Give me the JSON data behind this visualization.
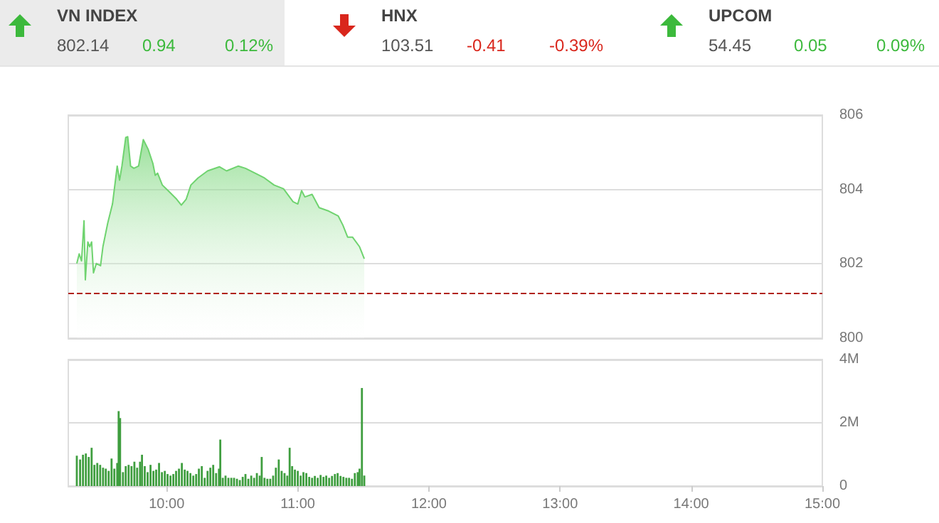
{
  "chart_data": [
    {
      "type": "other",
      "annotations": [
        "VN INDEX",
        "802.14",
        "0.94",
        "0.12%",
        "HNX",
        "103.51",
        "-0.41",
        "-0.39%",
        "UPCOM",
        "54.45",
        "0.05",
        "0.09%"
      ],
      "colors": [
        "#3cb93c",
        "#d9261c",
        "#3cb93c"
      ]
    },
    {
      "type": "area",
      "color": "#6fd36f",
      "tick_labels": "y",
      "grid": "y",
      "x": [
        9.315,
        9.333,
        9.351,
        9.37,
        9.38,
        9.399,
        9.413,
        9.428,
        9.442,
        9.464,
        9.496,
        9.514,
        9.551,
        9.587,
        9.623,
        9.641,
        9.659,
        9.688,
        9.703,
        9.725,
        9.75,
        9.786,
        9.822,
        9.859,
        9.895,
        9.913,
        9.931,
        9.967,
        10.022,
        10.076,
        10.112,
        10.149,
        10.185,
        10.239,
        10.312,
        10.402,
        10.457,
        10.547,
        10.601,
        10.674,
        10.746,
        10.819,
        10.891,
        10.964,
        11.0,
        11.029,
        11.054,
        11.109,
        11.163,
        11.236,
        11.308,
        11.344,
        11.38,
        11.417,
        11.471,
        11.507
      ],
      "values": [
        802.01,
        802.27,
        802.08,
        803.16,
        801.57,
        802.59,
        802.46,
        802.59,
        801.76,
        802.01,
        801.95,
        802.46,
        803.1,
        803.61,
        804.63,
        804.25,
        804.63,
        805.4,
        805.42,
        804.63,
        804.57,
        804.63,
        805.34,
        805.08,
        804.7,
        804.38,
        804.44,
        804.12,
        803.93,
        803.74,
        803.58,
        803.74,
        804.12,
        804.31,
        804.5,
        804.61,
        804.5,
        804.63,
        804.57,
        804.44,
        804.31,
        804.12,
        804.02,
        803.67,
        803.61,
        803.97,
        803.8,
        803.87,
        803.51,
        803.42,
        803.29,
        803.04,
        802.72,
        802.72,
        802.46,
        802.14
      ],
      "xlim": [
        9.25,
        15
      ],
      "ylim": [
        800,
        806
      ],
      "yticks": [
        800,
        802,
        804,
        806
      ],
      "ref_lines": [
        {
          "axis": "y",
          "value": 801.2,
          "color": "#b0211a",
          "line_style": "dashed"
        }
      ]
    },
    {
      "type": "bar",
      "color": "#3f9e3f",
      "grid": "y",
      "x": [
        9.315,
        9.34,
        9.362,
        9.384,
        9.406,
        9.428,
        9.449,
        9.471,
        9.493,
        9.515,
        9.536,
        9.558,
        9.58,
        9.601,
        9.623,
        9.634,
        9.645,
        9.667,
        9.688,
        9.71,
        9.732,
        9.754,
        9.775,
        9.797,
        9.812,
        9.833,
        9.855,
        9.877,
        9.899,
        9.92,
        9.942,
        9.964,
        9.986,
        10.007,
        10.029,
        10.051,
        10.072,
        10.094,
        10.116,
        10.138,
        10.159,
        10.181,
        10.203,
        10.225,
        10.246,
        10.268,
        10.29,
        10.312,
        10.333,
        10.355,
        10.377,
        10.399,
        10.409,
        10.428,
        10.449,
        10.471,
        10.493,
        10.514,
        10.536,
        10.558,
        10.58,
        10.601,
        10.623,
        10.645,
        10.667,
        10.688,
        10.71,
        10.725,
        10.746,
        10.768,
        10.79,
        10.812,
        10.833,
        10.855,
        10.877,
        10.899,
        10.92,
        10.938,
        10.957,
        10.978,
        11.0,
        11.022,
        11.043,
        11.065,
        11.087,
        11.109,
        11.13,
        11.152,
        11.174,
        11.196,
        11.217,
        11.239,
        11.261,
        11.283,
        11.304,
        11.326,
        11.348,
        11.37,
        11.391,
        11.413,
        11.435,
        11.457,
        11.471,
        11.489,
        11.507
      ],
      "values": [
        0.96,
        0.84,
        0.99,
        1.03,
        0.92,
        1.21,
        0.67,
        0.73,
        0.67,
        0.58,
        0.55,
        0.48,
        0.87,
        0.55,
        0.73,
        2.37,
        2.15,
        0.44,
        0.63,
        0.67,
        0.63,
        0.77,
        0.58,
        0.77,
        0.99,
        0.63,
        0.44,
        0.67,
        0.48,
        0.52,
        0.73,
        0.44,
        0.48,
        0.38,
        0.33,
        0.38,
        0.48,
        0.55,
        0.73,
        0.52,
        0.48,
        0.41,
        0.33,
        0.38,
        0.55,
        0.63,
        0.26,
        0.48,
        0.58,
        0.67,
        0.41,
        0.55,
        1.47,
        0.26,
        0.33,
        0.26,
        0.26,
        0.26,
        0.23,
        0.19,
        0.29,
        0.38,
        0.23,
        0.33,
        0.26,
        0.41,
        0.33,
        0.92,
        0.26,
        0.23,
        0.23,
        0.33,
        0.58,
        0.84,
        0.48,
        0.41,
        0.33,
        1.21,
        0.63,
        0.52,
        0.48,
        0.33,
        0.44,
        0.41,
        0.29,
        0.26,
        0.32,
        0.26,
        0.35,
        0.29,
        0.33,
        0.26,
        0.32,
        0.38,
        0.41,
        0.32,
        0.29,
        0.26,
        0.26,
        0.23,
        0.41,
        0.44,
        0.55,
        3.1,
        0.33
      ],
      "xlim": [
        9.25,
        15
      ],
      "xticks": [
        {
          "value": 10,
          "label": "10:00"
        },
        {
          "value": 11,
          "label": "11:00"
        },
        {
          "value": 12,
          "label": "12:00"
        },
        {
          "value": 13,
          "label": "13:00"
        },
        {
          "value": 14,
          "label": "14:00"
        },
        {
          "value": 15,
          "label": "15:00"
        }
      ],
      "ylim": [
        0,
        4
      ],
      "yticks": [
        {
          "value": 0,
          "label": "0"
        },
        {
          "value": 2,
          "label": "2M"
        },
        {
          "value": 4,
          "label": "4M"
        }
      ]
    }
  ]
}
